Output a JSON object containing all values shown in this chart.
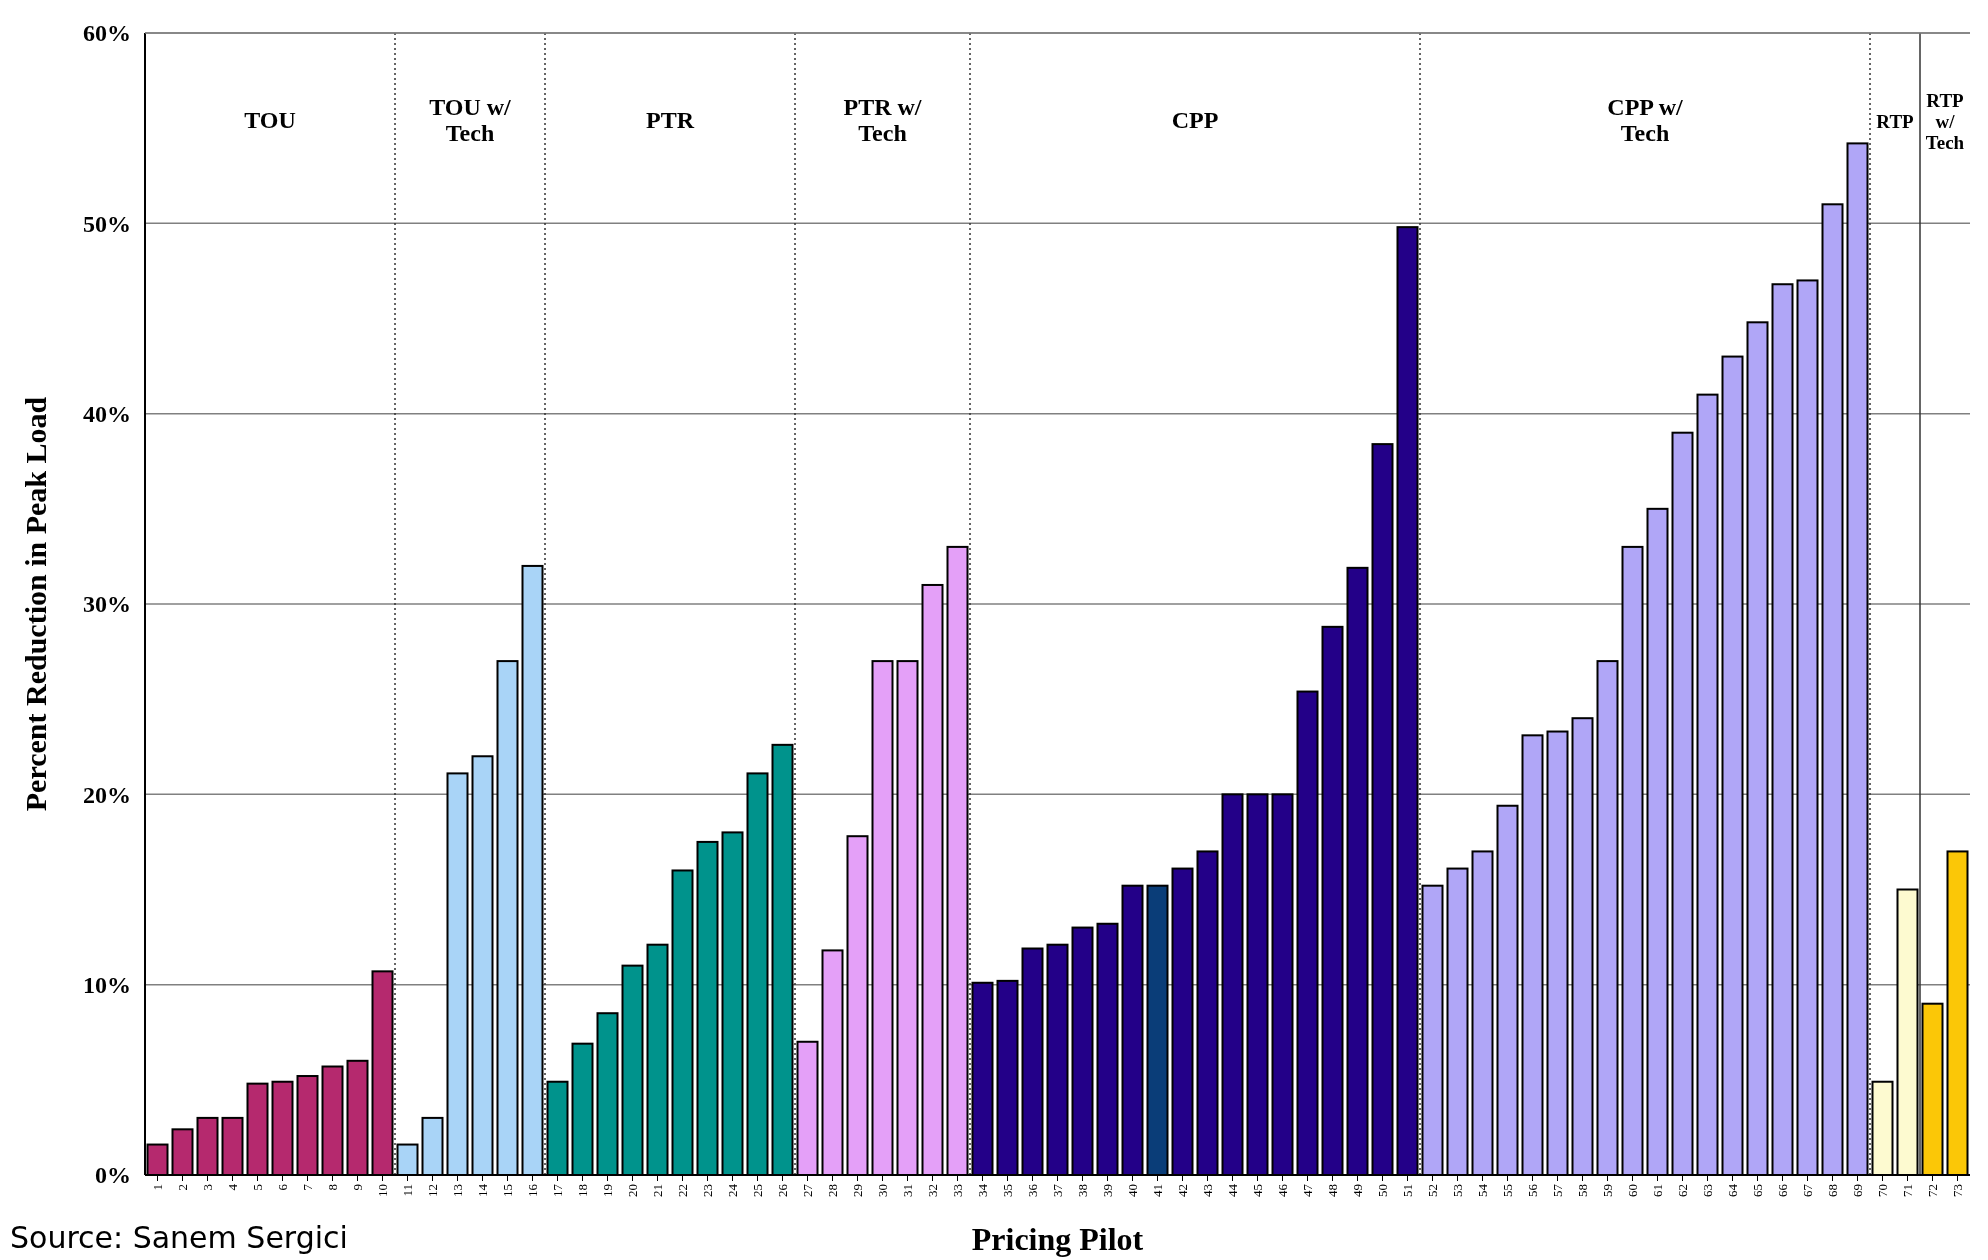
{
  "chart_data": {
    "type": "bar",
    "xlabel": "Pricing Pilot",
    "ylabel": "Percent Reduction in Peak Load",
    "x": [
      1,
      2,
      3,
      4,
      5,
      6,
      7,
      8,
      9,
      10,
      11,
      12,
      13,
      14,
      15,
      16,
      17,
      18,
      19,
      20,
      21,
      22,
      23,
      24,
      25,
      26,
      27,
      28,
      29,
      30,
      31,
      32,
      33,
      34,
      35,
      36,
      37,
      38,
      39,
      40,
      41,
      42,
      43,
      44,
      45,
      46,
      47,
      48,
      49,
      50,
      51,
      52,
      53,
      54,
      55,
      56,
      57,
      58,
      59,
      60,
      61,
      62,
      63,
      64,
      65,
      66,
      67,
      68,
      69,
      70,
      71,
      72,
      73
    ],
    "values": [
      1.6,
      2.4,
      3.0,
      3.0,
      4.8,
      4.9,
      5.2,
      5.7,
      6.0,
      10.7,
      1.6,
      3.0,
      21.1,
      22.0,
      27.0,
      32.0,
      4.9,
      6.9,
      8.5,
      11.0,
      12.1,
      16.0,
      17.5,
      18.0,
      21.1,
      22.6,
      7.0,
      11.8,
      17.8,
      27.0,
      27.0,
      31.0,
      33.0,
      10.1,
      10.2,
      11.9,
      12.1,
      13.0,
      13.2,
      15.2,
      15.2,
      16.1,
      17.0,
      20.0,
      20.0,
      20.0,
      25.4,
      28.8,
      31.9,
      38.4,
      49.8,
      15.2,
      16.1,
      17.0,
      19.4,
      23.1,
      23.3,
      24.0,
      27.0,
      33.0,
      35.0,
      39.0,
      41.0,
      43.0,
      44.8,
      46.8,
      47.0,
      51.0,
      54.2,
      4.9,
      15.0,
      9.0,
      17.0
    ],
    "colors": [
      "#b5296e",
      "#b5296e",
      "#b5296e",
      "#b5296e",
      "#b5296e",
      "#b5296e",
      "#b5296e",
      "#b5296e",
      "#b5296e",
      "#b5296e",
      "#a9d4f7",
      "#a9d4f7",
      "#a9d4f7",
      "#a9d4f7",
      "#a9d4f7",
      "#a9d4f7",
      "#00938c",
      "#00938c",
      "#00938c",
      "#00938c",
      "#00938c",
      "#00938c",
      "#00938c",
      "#00938c",
      "#00938c",
      "#00938c",
      "#e4a0f8",
      "#e4a0f8",
      "#e4a0f8",
      "#e4a0f8",
      "#e4a0f8",
      "#e4a0f8",
      "#e4a0f8",
      "#230088",
      "#230088",
      "#230088",
      "#230088",
      "#230088",
      "#230088",
      "#230088",
      "#0a3d78",
      "#230088",
      "#230088",
      "#230088",
      "#230088",
      "#230088",
      "#230088",
      "#230088",
      "#230088",
      "#230088",
      "#230088",
      "#b0a6f7",
      "#b0a6f7",
      "#b0a6f7",
      "#b0a6f7",
      "#b0a6f7",
      "#b0a6f7",
      "#b0a6f7",
      "#b0a6f7",
      "#b0a6f7",
      "#b0a6f7",
      "#b0a6f7",
      "#b0a6f7",
      "#b0a6f7",
      "#b0a6f7",
      "#b0a6f7",
      "#b0a6f7",
      "#b0a6f7",
      "#b0a6f7",
      "#fdfad0",
      "#fdfad0",
      "#fbc707",
      "#fbc707"
    ],
    "xlim": [
      0.5,
      73.5
    ],
    "xticks": [
      1,
      2,
      3,
      4,
      5,
      6,
      7,
      8,
      9,
      10,
      11,
      12,
      13,
      14,
      15,
      16,
      17,
      18,
      19,
      20,
      21,
      22,
      23,
      24,
      25,
      26,
      27,
      28,
      29,
      30,
      31,
      32,
      33,
      34,
      35,
      36,
      37,
      38,
      39,
      40,
      41,
      42,
      43,
      44,
      45,
      46,
      47,
      48,
      49,
      50,
      51,
      52,
      53,
      54,
      55,
      56,
      57,
      58,
      59,
      60,
      61,
      62,
      63,
      64,
      65,
      66,
      67,
      68,
      69,
      70,
      71,
      72,
      73
    ],
    "ylim": [
      0,
      60
    ],
    "yticks": [
      {
        "value": 0,
        "label": "0%"
      },
      {
        "value": 10,
        "label": "10%"
      },
      {
        "value": 20,
        "label": "20%"
      },
      {
        "value": 30,
        "label": "30%"
      },
      {
        "value": 40,
        "label": "40%"
      },
      {
        "value": 50,
        "label": "50%"
      },
      {
        "value": 60,
        "label": "60%"
      }
    ],
    "grid": "y",
    "ref_lines": [
      {
        "axis": "x",
        "value": 10.5,
        "line_style": "dotted"
      },
      {
        "axis": "x",
        "value": 16.5,
        "line_style": "dotted"
      },
      {
        "axis": "x",
        "value": 26.5,
        "line_style": "dotted"
      },
      {
        "axis": "x",
        "value": 33.5,
        "line_style": "dotted"
      },
      {
        "axis": "x",
        "value": 51.5,
        "line_style": "dotted"
      },
      {
        "axis": "x",
        "value": 69.5,
        "line_style": "dotted"
      },
      {
        "axis": "x",
        "value": 71.5,
        "line_style": "solid"
      }
    ],
    "annotations": [
      "TOU",
      "TOU w/ Tech",
      "PTR",
      "PTR w/ Tech",
      "CPP",
      "CPP w/ Tech",
      "RTP",
      "RTP w/ Tech",
      "Source: Sanem Sergici"
    ]
  }
}
